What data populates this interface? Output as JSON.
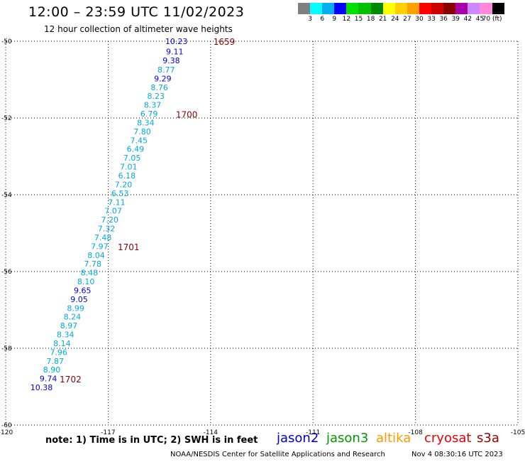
{
  "header": {
    "title": "12:00 – 23:59 UTC 11/02/2023",
    "subtitle": "12 hour collection of altimeter wave heights"
  },
  "legend": {
    "swatches": [
      "#808080",
      "#00ffff",
      "#00b0f0",
      "#0000ff",
      "#00e000",
      "#00c000",
      "#008800",
      "#ffff00",
      "#ffd000",
      "#ffa000",
      "#ff0000",
      "#cc0000",
      "#880000",
      "#aa00aa",
      "#cc88ff",
      "#ff88dd",
      "#000000"
    ],
    "labels": [
      "3",
      "6",
      "9",
      "12",
      "15",
      "18",
      "21",
      "24",
      "27",
      "30",
      "33",
      "36",
      "39",
      "42",
      "45",
      "70 (ft)"
    ]
  },
  "map": {
    "lon_range": [
      -120,
      -105
    ],
    "lat_range": [
      -60,
      -50
    ],
    "x_ticks": [
      {
        "value": -120,
        "label": "-120"
      },
      {
        "value": -117,
        "label": "-117"
      },
      {
        "value": -114,
        "label": "-114"
      },
      {
        "value": -111,
        "label": "-111"
      },
      {
        "value": -108,
        "label": "-108"
      },
      {
        "value": -105,
        "label": "-105"
      }
    ],
    "y_ticks": [
      {
        "value": -50,
        "label": "-50"
      },
      {
        "value": -52,
        "label": "-52"
      },
      {
        "value": -54,
        "label": "-54"
      },
      {
        "value": -56,
        "label": "-56"
      },
      {
        "value": -58,
        "label": "-58"
      },
      {
        "value": -60,
        "label": "-60"
      }
    ],
    "grid": "dotted"
  },
  "chart_data": {
    "type": "scatter",
    "x_axis": "longitude",
    "y_axis": "latitude",
    "points": [
      {
        "lon": -115.0,
        "lat": -50.0,
        "swh": "10.23",
        "color": "#0000dd"
      },
      {
        "lon": -115.05,
        "lat": -50.27,
        "swh": "9.11",
        "color": "#0000dd"
      },
      {
        "lon": -115.15,
        "lat": -50.5,
        "swh": "9.38",
        "color": "#0000dd"
      },
      {
        "lon": -115.3,
        "lat": -50.74,
        "swh": "8.77",
        "color": "#00a8e0"
      },
      {
        "lon": -115.4,
        "lat": -50.97,
        "swh": "9.29",
        "color": "#0000dd"
      },
      {
        "lon": -115.5,
        "lat": -51.2,
        "swh": "8.76",
        "color": "#00a8e0"
      },
      {
        "lon": -115.6,
        "lat": -51.43,
        "swh": "8.23",
        "color": "#00a8e0"
      },
      {
        "lon": -115.7,
        "lat": -51.66,
        "swh": "8.37",
        "color": "#00a8e0"
      },
      {
        "lon": -115.8,
        "lat": -51.89,
        "swh": "6.79",
        "color": "#00a8e0"
      },
      {
        "lon": -115.9,
        "lat": -52.12,
        "swh": "8.34",
        "color": "#00a8e0"
      },
      {
        "lon": -116.0,
        "lat": -52.35,
        "swh": "7.80",
        "color": "#00a8e0"
      },
      {
        "lon": -116.1,
        "lat": -52.58,
        "swh": "7.45",
        "color": "#00a8e0"
      },
      {
        "lon": -116.2,
        "lat": -52.81,
        "swh": "6.49",
        "color": "#00a8e0"
      },
      {
        "lon": -116.3,
        "lat": -53.04,
        "swh": "7.05",
        "color": "#00a8e0"
      },
      {
        "lon": -116.4,
        "lat": -53.27,
        "swh": "7.01",
        "color": "#00a8e0"
      },
      {
        "lon": -116.45,
        "lat": -53.5,
        "swh": "6.18",
        "color": "#00a8e0"
      },
      {
        "lon": -116.55,
        "lat": -53.73,
        "swh": "7.20",
        "color": "#00a8e0"
      },
      {
        "lon": -116.65,
        "lat": -53.96,
        "swh": "6.53",
        "color": "#00a8e0"
      },
      {
        "lon": -116.75,
        "lat": -54.19,
        "swh": "7.11",
        "color": "#00a8e0"
      },
      {
        "lon": -116.85,
        "lat": -54.42,
        "swh": "7.07",
        "color": "#00a8e0"
      },
      {
        "lon": -116.95,
        "lat": -54.65,
        "swh": "7.20",
        "color": "#00a8e0"
      },
      {
        "lon": -117.05,
        "lat": -54.88,
        "swh": "7.32",
        "color": "#00a8e0"
      },
      {
        "lon": -117.15,
        "lat": -55.11,
        "swh": "7.48",
        "color": "#00a8e0"
      },
      {
        "lon": -117.25,
        "lat": -55.34,
        "swh": "7.97",
        "color": "#00a8e0"
      },
      {
        "lon": -117.35,
        "lat": -55.57,
        "swh": "8.04",
        "color": "#00a8e0"
      },
      {
        "lon": -117.45,
        "lat": -55.8,
        "swh": "7.78",
        "color": "#00a8e0"
      },
      {
        "lon": -117.55,
        "lat": -56.03,
        "swh": "8.48",
        "color": "#00a8e0"
      },
      {
        "lon": -117.65,
        "lat": -56.26,
        "swh": "8.10",
        "color": "#00a8e0"
      },
      {
        "lon": -117.75,
        "lat": -56.49,
        "swh": "9.65",
        "color": "#0000dd"
      },
      {
        "lon": -117.85,
        "lat": -56.72,
        "swh": "9.05",
        "color": "#0000dd"
      },
      {
        "lon": -117.95,
        "lat": -56.95,
        "swh": "8.99",
        "color": "#00a8e0"
      },
      {
        "lon": -118.05,
        "lat": -57.18,
        "swh": "8.24",
        "color": "#00a8e0"
      },
      {
        "lon": -118.15,
        "lat": -57.41,
        "swh": "8.97",
        "color": "#00a8e0"
      },
      {
        "lon": -118.25,
        "lat": -57.64,
        "swh": "8.34",
        "color": "#00a8e0"
      },
      {
        "lon": -118.35,
        "lat": -57.87,
        "swh": "8.14",
        "color": "#00a8e0"
      },
      {
        "lon": -118.45,
        "lat": -58.1,
        "swh": "7.96",
        "color": "#00a8e0"
      },
      {
        "lon": -118.55,
        "lat": -58.33,
        "swh": "7.87",
        "color": "#00a8e0"
      },
      {
        "lon": -118.65,
        "lat": -58.56,
        "swh": "8.90",
        "color": "#00a8e0"
      },
      {
        "lon": -118.75,
        "lat": -58.79,
        "swh": "9.74",
        "color": "#0000dd"
      },
      {
        "lon": -118.95,
        "lat": -59.02,
        "swh": "10.38",
        "color": "#0000dd"
      }
    ],
    "time_labels": [
      {
        "text": "1659",
        "lon": -113.6,
        "lat": -50.0,
        "color": "#880000"
      },
      {
        "text": "1700",
        "lon": -114.7,
        "lat": -51.9,
        "color": "#880000"
      },
      {
        "text": "1701",
        "lon": -116.4,
        "lat": -55.35,
        "color": "#880000"
      },
      {
        "text": "1702",
        "lon": -118.1,
        "lat": -58.8,
        "color": "#880000"
      }
    ]
  },
  "footer": {
    "note": "note:  1) Time is in UTC;  2) SWH is in feet",
    "satellites": [
      {
        "name": "jason2",
        "color": "#0000cc"
      },
      {
        "name": "jason3",
        "color": "#009900"
      },
      {
        "name": "altika",
        "color": "#ff9900"
      },
      {
        "name": "cryosat",
        "color": "#ee0000"
      },
      {
        "name": "s3a",
        "color": "#990000"
      }
    ],
    "credit": "NOAA/NESDIS Center for Satellite Applications and Research",
    "timestamp": "Nov  4 08:30:16 UTC 2023"
  }
}
